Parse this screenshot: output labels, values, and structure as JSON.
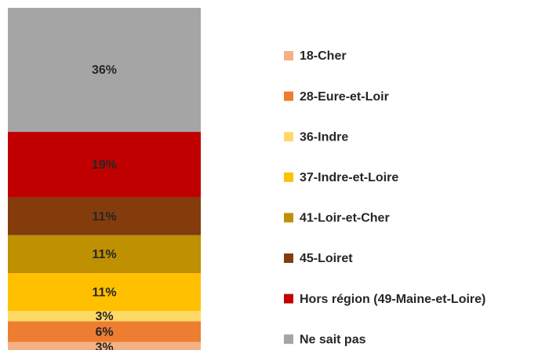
{
  "chart_data": {
    "type": "bar",
    "stacked": true,
    "series": [
      {
        "name": "18-Cher",
        "color": "#f4b183",
        "values": [
          3
        ],
        "value_labels": [
          "3%"
        ]
      },
      {
        "name": "28-Eure-et-Loir",
        "color": "#ed7d31",
        "values": [
          6
        ],
        "value_labels": [
          "6%"
        ]
      },
      {
        "name": "36-Indre",
        "color": "#ffd966",
        "values": [
          3
        ],
        "value_labels": [
          "3%"
        ]
      },
      {
        "name": "37-Indre-et-Loire",
        "color": "#ffc000",
        "values": [
          11
        ],
        "value_labels": [
          "11%"
        ]
      },
      {
        "name": "41-Loir-et-Cher",
        "color": "#bf9000",
        "values": [
          11
        ],
        "value_labels": [
          "11%"
        ]
      },
      {
        "name": "45-Loiret",
        "color": "#843c0c",
        "values": [
          11
        ],
        "value_labels": [
          "11%"
        ]
      },
      {
        "name": "Hors région (49-Maine-et-Loire)",
        "color": "#c00000",
        "values": [
          19
        ],
        "value_labels": [
          "19%"
        ]
      },
      {
        "name": "Ne sait pas",
        "color": "#a5a5a5",
        "values": [
          36
        ],
        "value_labels": [
          "36%"
        ]
      }
    ],
    "legend": "right"
  }
}
